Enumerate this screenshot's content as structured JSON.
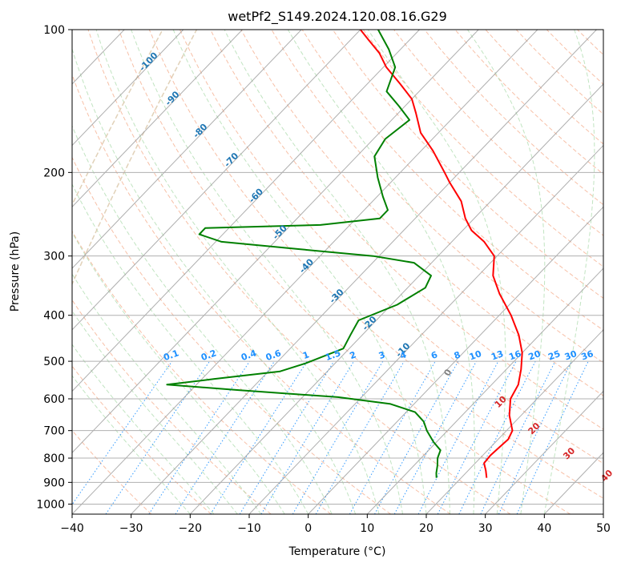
{
  "chart_data": {
    "type": "line",
    "title": "wetPf2_S149.2024.120.08.16.G29",
    "xlabel": "Temperature (°C)",
    "ylabel": "Pressure (hPa)",
    "xlim": [
      -40,
      50
    ],
    "ylim": [
      1050,
      100
    ],
    "y_scale": "log",
    "grid": true,
    "x_ticks": [
      -40,
      -30,
      -20,
      -10,
      0,
      10,
      20,
      30,
      40,
      50
    ],
    "y_ticks": [
      100,
      200,
      300,
      400,
      500,
      600,
      700,
      800,
      900,
      1000
    ],
    "series": [
      {
        "color": "#ff0000",
        "points": [
          {
            "p": 880,
            "t": 24.3
          },
          {
            "p": 850,
            "t": 23.0
          },
          {
            "p": 820,
            "t": 21.5
          },
          {
            "p": 790,
            "t": 21.3
          },
          {
            "p": 760,
            "t": 21.5
          },
          {
            "p": 730,
            "t": 21.7
          },
          {
            "p": 700,
            "t": 21.0
          },
          {
            "p": 650,
            "t": 18.0
          },
          {
            "p": 600,
            "t": 15.5
          },
          {
            "p": 560,
            "t": 14.5
          },
          {
            "p": 520,
            "t": 12.5
          },
          {
            "p": 480,
            "t": 10.0
          },
          {
            "p": 440,
            "t": 6.5
          },
          {
            "p": 400,
            "t": 2.0
          },
          {
            "p": 360,
            "t": -3.5
          },
          {
            "p": 330,
            "t": -7.5
          },
          {
            "p": 300,
            "t": -10.5
          },
          {
            "p": 280,
            "t": -14.5
          },
          {
            "p": 265,
            "t": -18.5
          },
          {
            "p": 250,
            "t": -21.5
          },
          {
            "p": 230,
            "t": -25.0
          },
          {
            "p": 210,
            "t": -30.0
          },
          {
            "p": 200,
            "t": -32.5
          },
          {
            "p": 180,
            "t": -38.0
          },
          {
            "p": 165,
            "t": -43.0
          },
          {
            "p": 150,
            "t": -47.0
          },
          {
            "p": 140,
            "t": -50.0
          },
          {
            "p": 130,
            "t": -54.5
          },
          {
            "p": 120,
            "t": -59.5
          },
          {
            "p": 112,
            "t": -63.0
          },
          {
            "p": 105,
            "t": -67.0
          },
          {
            "p": 100,
            "t": -70.0
          }
        ]
      },
      {
        "color": "#008000",
        "points": [
          {
            "p": 880,
            "t": 15.8
          },
          {
            "p": 860,
            "t": 15.0
          },
          {
            "p": 830,
            "t": 14.0
          },
          {
            "p": 800,
            "t": 12.8
          },
          {
            "p": 770,
            "t": 12.0
          },
          {
            "p": 740,
            "t": 9.5
          },
          {
            "p": 700,
            "t": 6.5
          },
          {
            "p": 670,
            "t": 4.5
          },
          {
            "p": 640,
            "t": 1.5
          },
          {
            "p": 615,
            "t": -4.0
          },
          {
            "p": 595,
            "t": -14.0
          },
          {
            "p": 575,
            "t": -32.0
          },
          {
            "p": 560,
            "t": -45.0
          },
          {
            "p": 545,
            "t": -38.0
          },
          {
            "p": 525,
            "t": -28.0
          },
          {
            "p": 505,
            "t": -25.0
          },
          {
            "p": 470,
            "t": -21.0
          },
          {
            "p": 440,
            "t": -22.0
          },
          {
            "p": 410,
            "t": -23.0
          },
          {
            "p": 380,
            "t": -19.0
          },
          {
            "p": 350,
            "t": -17.0
          },
          {
            "p": 330,
            "t": -18.0
          },
          {
            "p": 310,
            "t": -23.0
          },
          {
            "p": 300,
            "t": -31.0
          },
          {
            "p": 290,
            "t": -45.0
          },
          {
            "p": 280,
            "t": -59.0
          },
          {
            "p": 270,
            "t": -64.0
          },
          {
            "p": 262,
            "t": -64.0
          },
          {
            "p": 258,
            "t": -45.0
          },
          {
            "p": 250,
            "t": -36.0
          },
          {
            "p": 240,
            "t": -36.0
          },
          {
            "p": 225,
            "t": -39.0
          },
          {
            "p": 205,
            "t": -43.0
          },
          {
            "p": 185,
            "t": -47.0
          },
          {
            "p": 170,
            "t": -48.0
          },
          {
            "p": 155,
            "t": -47.0
          },
          {
            "p": 145,
            "t": -51.0
          },
          {
            "p": 135,
            "t": -55.5
          },
          {
            "p": 120,
            "t": -58.0
          },
          {
            "p": 110,
            "t": -62.0
          },
          {
            "p": 100,
            "t": -67.0
          }
        ]
      }
    ],
    "isotherm_labels": {
      "color": "#1f77b4",
      "values": [
        -100,
        -90,
        -80,
        -70,
        -60,
        -50,
        -40,
        -30,
        -20,
        -10
      ]
    },
    "mixing_ratio_labels": {
      "color": "#1e90ff",
      "values": [
        "0.1",
        "0.2",
        "0.4",
        "0.6",
        "1",
        "1.5",
        "2",
        "3",
        "4",
        "6",
        "8",
        "10",
        "13",
        "16",
        "20",
        "25",
        "30",
        "36"
      ]
    },
    "dry_adiabat_labels": {
      "color": "#d62728",
      "values": [
        10,
        20,
        30,
        40
      ]
    },
    "moist_adiabat_zero_label": {
      "color": "#808080",
      "value": "0"
    }
  }
}
